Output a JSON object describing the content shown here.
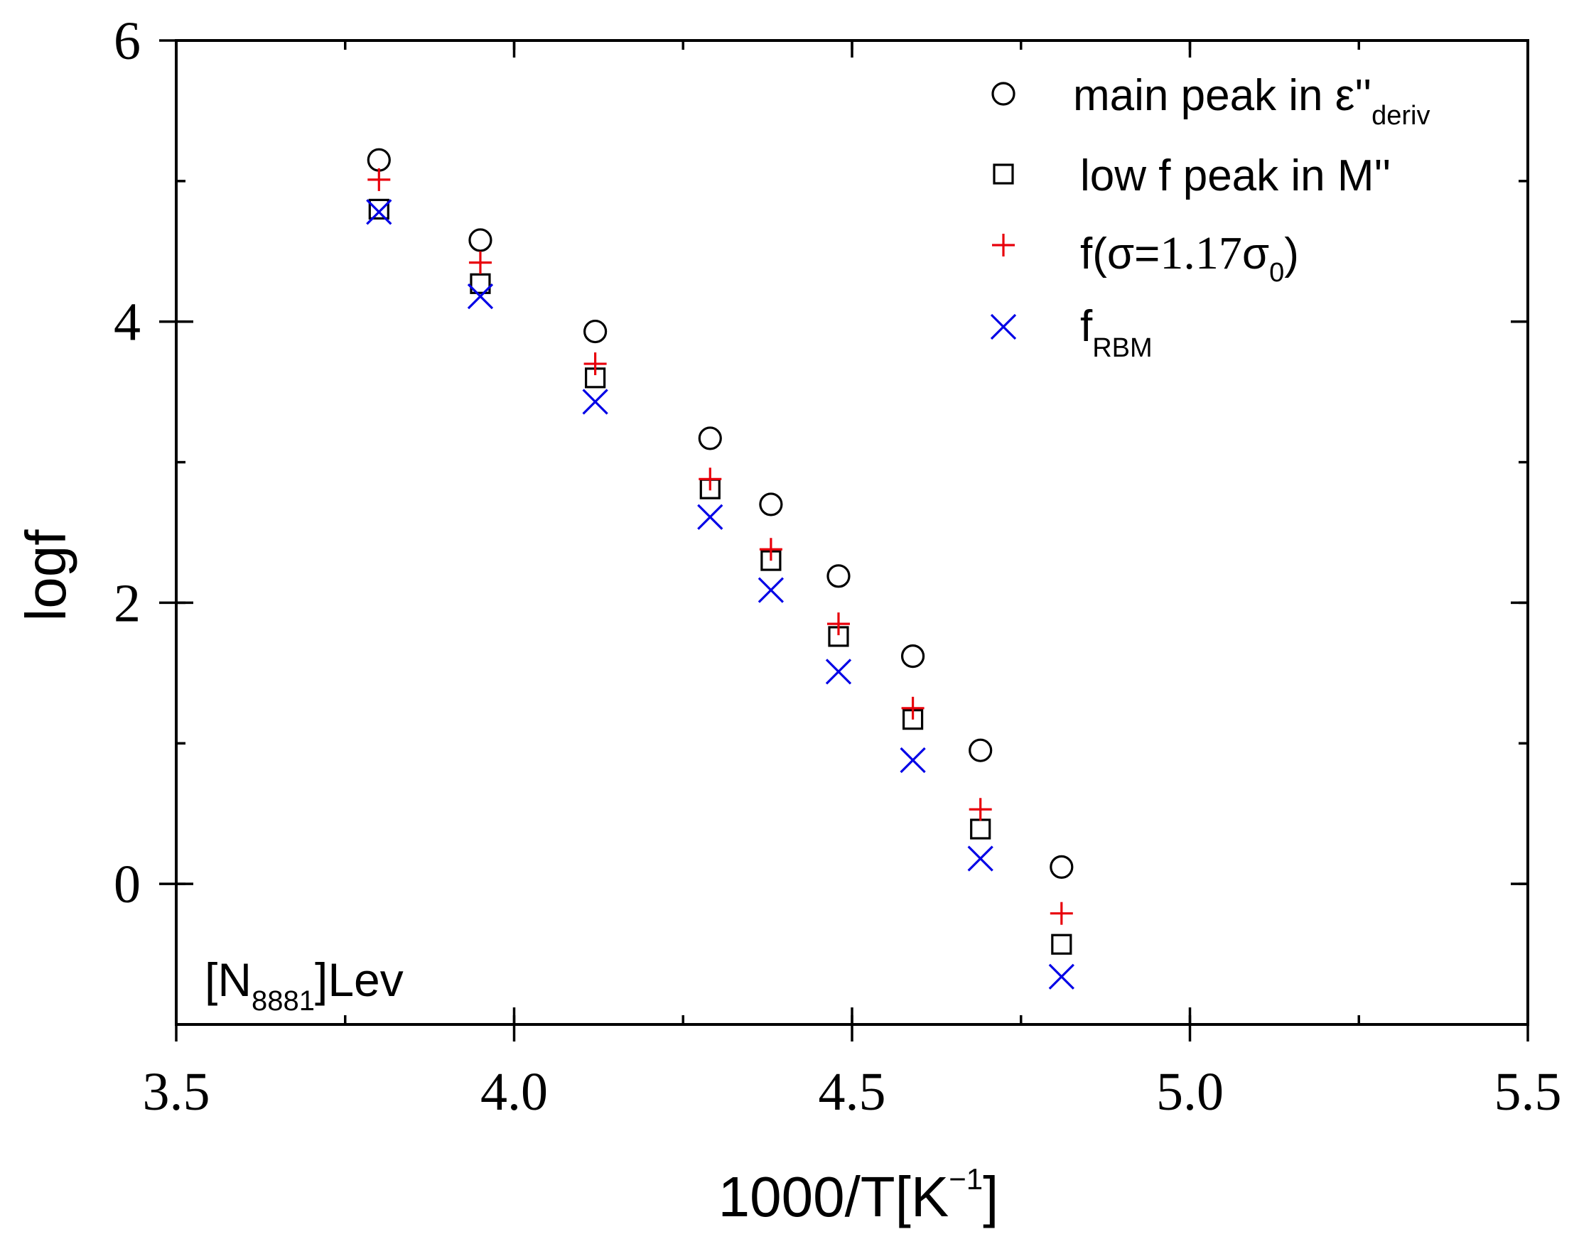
{
  "chart_data": {
    "type": "scatter",
    "xlabel": "1000/T[K",
    "xlabel_sup": "−1",
    "xlabel_close": "]",
    "ylabel": "logf",
    "xlim": [
      3.5,
      5.5
    ],
    "ylim": [
      -1,
      6
    ],
    "xticks": [
      3.5,
      4.0,
      4.5,
      5.0,
      5.5
    ],
    "xtick_labels": [
      "3.5",
      "4.0",
      "4.5",
      "5.0",
      "5.5"
    ],
    "yticks": [
      0,
      2,
      4,
      6
    ],
    "ytick_labels": [
      "0",
      "2",
      "4",
      "6"
    ],
    "x_minor_step": 0.25,
    "y_minor_step": 1,
    "annotation": {
      "main": "[N",
      "sub": "8881",
      "tail": "]Lev"
    },
    "legend_position": "top-right",
    "series": [
      {
        "name": "main peak in ε''deriv",
        "label_main": " main peak in ε''",
        "label_sub": "deriv",
        "marker": "circle",
        "color": "#000000",
        "x": [
          3.8,
          3.95,
          4.12,
          4.29,
          4.38,
          4.48,
          4.59,
          4.69,
          4.81
        ],
        "y": [
          5.15,
          4.58,
          3.93,
          3.17,
          2.7,
          2.19,
          1.62,
          0.95,
          0.12
        ]
      },
      {
        "name": "low f peak in M''",
        "label_main": "low f peak in M''",
        "marker": "square",
        "color": "#000000",
        "x": [
          3.8,
          3.95,
          4.12,
          4.29,
          4.38,
          4.48,
          4.59,
          4.69,
          4.81
        ],
        "y": [
          4.8,
          4.27,
          3.6,
          2.81,
          2.3,
          1.76,
          1.17,
          0.39,
          -0.43
        ]
      },
      {
        "name": "f(σ=1.17σ0)",
        "label_pre": "f(σ=",
        "label_num": "1.17",
        "label_sigma": "σ",
        "label_sub": "0",
        "label_post": ")",
        "marker": "plus",
        "color": "#e8000b",
        "x": [
          3.8,
          3.95,
          4.12,
          4.29,
          4.38,
          4.48,
          4.59,
          4.69,
          4.81
        ],
        "y": [
          5.01,
          4.42,
          3.7,
          2.88,
          2.38,
          1.85,
          1.25,
          0.53,
          -0.21
        ]
      },
      {
        "name": "fRBM",
        "label_main": "f",
        "label_sub": "RBM",
        "marker": "x",
        "color": "#0000e6",
        "x": [
          3.8,
          3.95,
          4.12,
          4.29,
          4.38,
          4.48,
          4.59,
          4.69,
          4.81
        ],
        "y": [
          4.78,
          4.18,
          3.43,
          2.61,
          2.09,
          1.51,
          0.88,
          0.18,
          -0.66
        ]
      }
    ]
  }
}
